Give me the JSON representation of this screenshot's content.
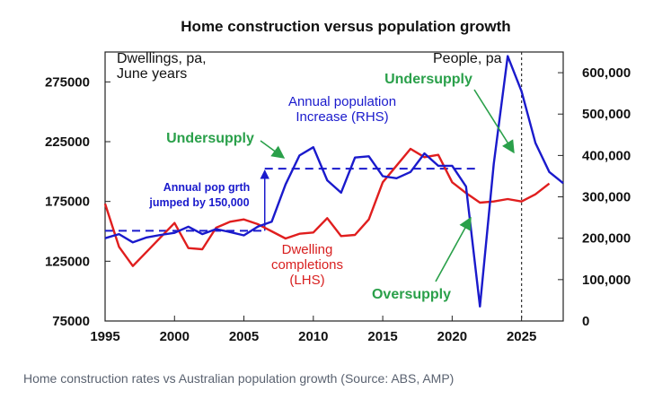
{
  "chart_data": {
    "type": "line",
    "title": "Home construction versus population growth",
    "left_axis_label": [
      "Dwellings, pa,",
      "June years"
    ],
    "right_axis_label": "People, pa",
    "x_range": [
      1995,
      2028
    ],
    "x_ticks": [
      "1995",
      "2000",
      "2005",
      "2010",
      "2015",
      "2020",
      "2025"
    ],
    "y_left_range": [
      75000,
      300000
    ],
    "y_left_ticks": [
      "75000",
      "125000",
      "175000",
      "225000",
      "275000"
    ],
    "y_right_range": [
      0,
      650000
    ],
    "y_right_ticks": [
      "0",
      "100,000",
      "200,000",
      "300,000",
      "400,000",
      "500,000",
      "600,000"
    ],
    "series": [
      {
        "name_lines": [
          "Dwelling",
          "completions",
          "(LHS)"
        ],
        "axis": "left",
        "color": "#e01e1e",
        "points": [
          [
            1995,
            173000
          ],
          [
            1996,
            137000
          ],
          [
            1997,
            121000
          ],
          [
            1998,
            133000
          ],
          [
            1999,
            145000
          ],
          [
            2000,
            157000
          ],
          [
            2001,
            136000
          ],
          [
            2002,
            135000
          ],
          [
            2003,
            153000
          ],
          [
            2004,
            158000
          ],
          [
            2005,
            160000
          ],
          [
            2006,
            156000
          ],
          [
            2007,
            150000
          ],
          [
            2008,
            144000
          ],
          [
            2009,
            148000
          ],
          [
            2010,
            149000
          ],
          [
            2011,
            161000
          ],
          [
            2012,
            146000
          ],
          [
            2013,
            147000
          ],
          [
            2014,
            160000
          ],
          [
            2015,
            191000
          ],
          [
            2016,
            205000
          ],
          [
            2017,
            219000
          ],
          [
            2018,
            212000
          ],
          [
            2019,
            214000
          ],
          [
            2020,
            191000
          ],
          [
            2021,
            182000
          ],
          [
            2022,
            174000
          ],
          [
            2023,
            175000
          ],
          [
            2024,
            177000
          ],
          [
            2025,
            175000
          ],
          [
            2026,
            181000
          ],
          [
            2027,
            190000
          ]
        ]
      },
      {
        "name_lines": [
          "Annual population",
          "Increase (RHS)"
        ],
        "axis": "right",
        "color": "#1a1acc",
        "points": [
          [
            1995,
            200000
          ],
          [
            1996,
            210000
          ],
          [
            1997,
            190000
          ],
          [
            1998,
            202000
          ],
          [
            1999,
            208000
          ],
          [
            2000,
            213000
          ],
          [
            2001,
            228000
          ],
          [
            2002,
            210000
          ],
          [
            2003,
            222000
          ],
          [
            2004,
            215000
          ],
          [
            2005,
            207000
          ],
          [
            2006,
            228000
          ],
          [
            2007,
            240000
          ],
          [
            2008,
            330000
          ],
          [
            2009,
            400000
          ],
          [
            2010,
            420000
          ],
          [
            2011,
            340000
          ],
          [
            2012,
            310000
          ],
          [
            2013,
            395000
          ],
          [
            2014,
            398000
          ],
          [
            2015,
            350000
          ],
          [
            2016,
            345000
          ],
          [
            2017,
            360000
          ],
          [
            2018,
            405000
          ],
          [
            2019,
            375000
          ],
          [
            2020,
            375000
          ],
          [
            2021,
            325000
          ],
          [
            2022,
            35000
          ],
          [
            2023,
            380000
          ],
          [
            2024,
            640000
          ],
          [
            2025,
            555000
          ],
          [
            2026,
            430000
          ],
          [
            2027,
            360000
          ],
          [
            2028,
            333000
          ]
        ]
      }
    ],
    "reference_lines": [
      {
        "axis": "right",
        "y": 218000,
        "x_from": 1995,
        "x_to": 2006.5
      },
      {
        "axis": "right",
        "y": 368000,
        "x_from": 2006.5,
        "x_to": 2022
      }
    ],
    "step_arrow": {
      "axis": "right",
      "x": 2006.5,
      "y_from": 218000,
      "y_to": 368000
    },
    "forecast_line_x": 2025,
    "annotations": {
      "undersupply_label": "Undersupply",
      "oversupply_label": "Oversupply",
      "pop_jump_lines": [
        "Annual pop grth",
        "jumped by 150,000"
      ]
    }
  },
  "caption": "Home construction rates vs Australian population growth (Source: ABS, AMP)"
}
